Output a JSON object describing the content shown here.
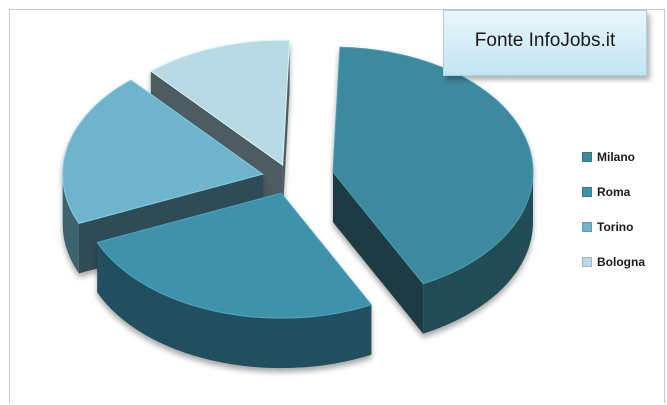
{
  "source_box": {
    "text": "Fonte InfoJobs.it"
  },
  "chart_data": {
    "type": "pie",
    "style": "3d-exploded",
    "title": "",
    "categories": [
      "Milano",
      "Roma",
      "Torino",
      "Bologna"
    ],
    "values": [
      42,
      26,
      20,
      12
    ],
    "colors": [
      "#3d8a9e",
      "#3f92ab",
      "#6fb4cc",
      "#b9d9e4"
    ],
    "legend_position": "right"
  }
}
